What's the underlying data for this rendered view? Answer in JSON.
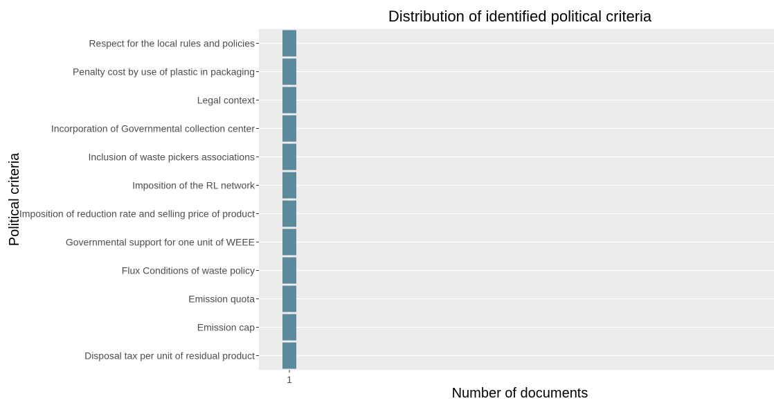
{
  "chart_data": {
    "type": "bar",
    "orientation": "horizontal",
    "title": "Distribution of identified political criteria",
    "xlabel": "Number of documents",
    "ylabel": "Political criteria",
    "x_ticks": [
      "1"
    ],
    "grid": true,
    "legend": "none",
    "colors": {
      "bar": "#5b8a9b",
      "panel": "#ebebeb",
      "grid": "#ffffff"
    },
    "categories": [
      "Respect for the local rules and policies",
      "Penalty cost by use of plastic in packaging",
      "Legal context",
      "Incorporation of Governmental collection center",
      "Inclusion of waste pickers associations",
      "Imposition of the RL network",
      "Imposition of reduction rate and selling price of product",
      "Governmental support for one unit of WEEE",
      "Flux Conditions of waste policy",
      "Emission quota",
      "Emission cap",
      "Disposal tax per unit of residual product"
    ],
    "values": [
      1,
      1,
      1,
      1,
      1,
      1,
      1,
      1,
      1,
      1,
      1,
      1
    ]
  }
}
